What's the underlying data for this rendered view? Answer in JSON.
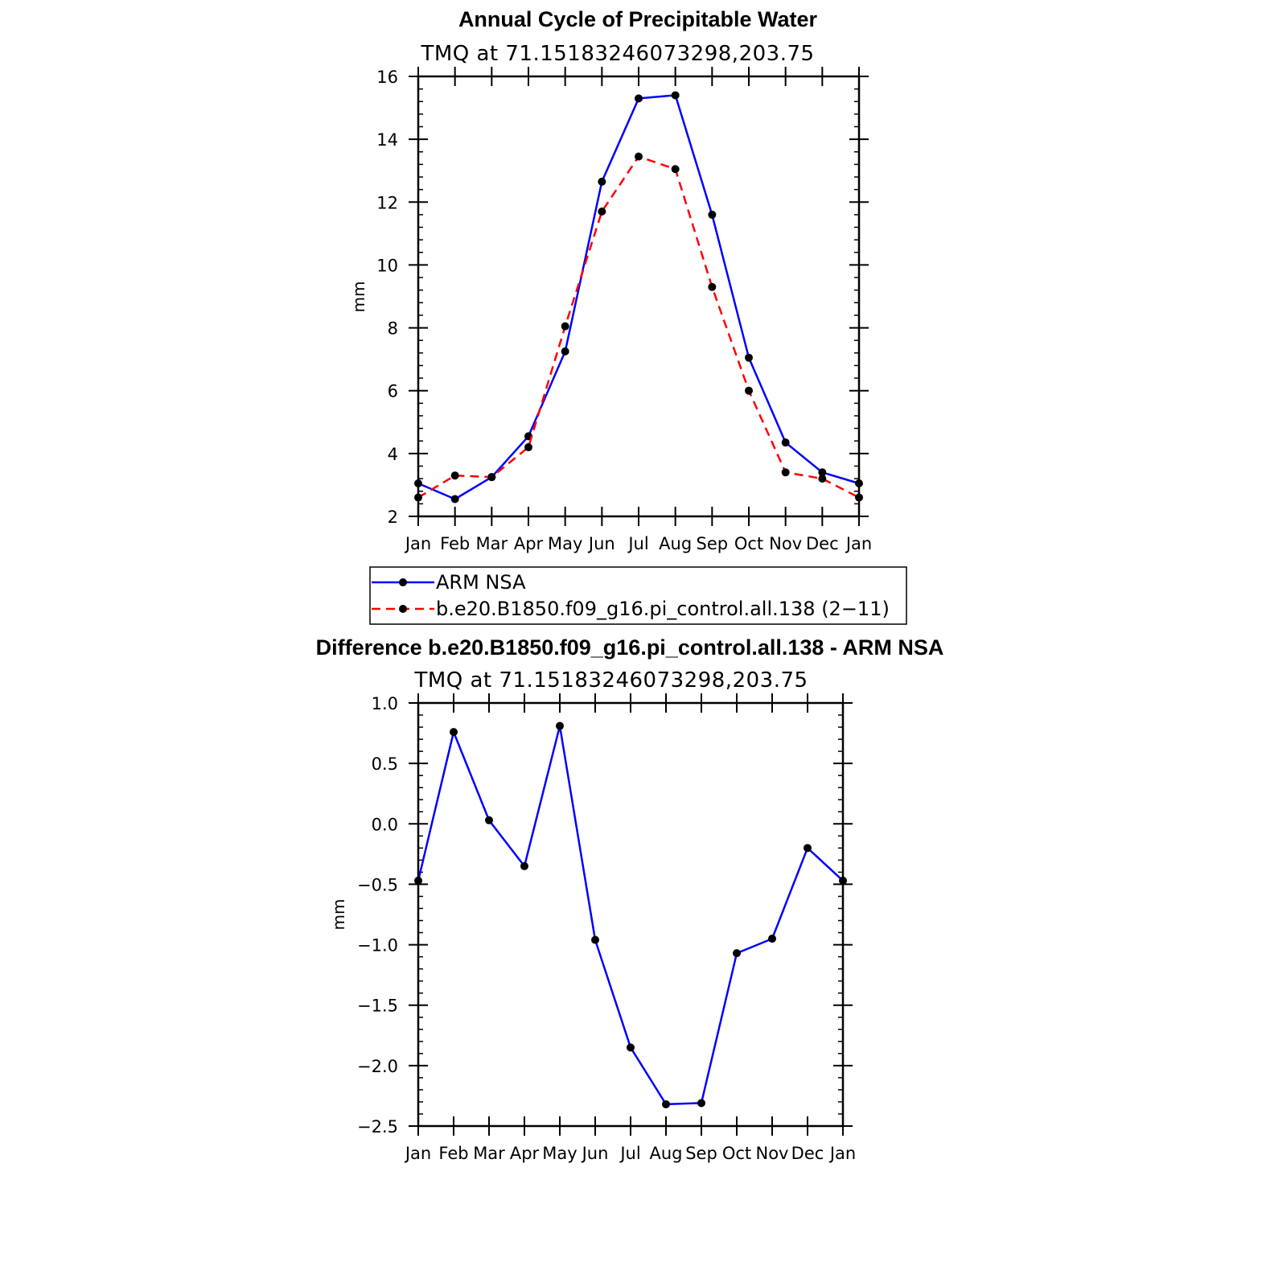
{
  "chart_data": [
    {
      "type": "line",
      "title": "Annual Cycle of Precipitable Water",
      "subtitle": "TMQ at 71.15183246073298,203.75",
      "xlabel": "",
      "ylabel": "mm",
      "categories": [
        "Jan",
        "Feb",
        "Mar",
        "Apr",
        "May",
        "Jun",
        "Jul",
        "Aug",
        "Sep",
        "Oct",
        "Nov",
        "Dec",
        "Jan"
      ],
      "ylim": [
        2,
        16
      ],
      "yticks": [
        2,
        4,
        6,
        8,
        10,
        12,
        14,
        16
      ],
      "ytick_labels": [
        "2",
        "4",
        "6",
        "8",
        "10",
        "12",
        "14",
        "16"
      ],
      "y_minor_step": 0.4,
      "series": [
        {
          "name": "ARM NSA",
          "color": "#0000ff",
          "dash": "solid",
          "values": [
            3.05,
            2.55,
            3.25,
            4.55,
            7.25,
            12.65,
            15.3,
            15.4,
            11.6,
            7.05,
            4.35,
            3.4,
            3.05
          ]
        },
        {
          "name": "b.e20.B1850.f09_g16.pi_control.all.138 (2−11)",
          "color": "#ff0000",
          "dash": "dashed",
          "values": [
            2.6,
            3.3,
            3.25,
            4.2,
            8.05,
            11.7,
            13.45,
            13.05,
            9.3,
            6.0,
            3.4,
            3.2,
            2.6
          ]
        }
      ],
      "legend": {
        "position": "below",
        "entries": [
          "ARM NSA",
          "b.e20.B1850.f09_g16.pi_control.all.138 (2−11)"
        ]
      }
    },
    {
      "type": "line",
      "title": "Difference b.e20.B1850.f09_g16.pi_control.all.138 - ARM NSA",
      "subtitle": "TMQ at 71.15183246073298,203.75",
      "xlabel": "",
      "ylabel": "mm",
      "categories": [
        "Jan",
        "Feb",
        "Mar",
        "Apr",
        "May",
        "Jun",
        "Jul",
        "Aug",
        "Sep",
        "Oct",
        "Nov",
        "Dec",
        "Jan"
      ],
      "ylim": [
        -2.5,
        1.0
      ],
      "yticks": [
        -2.5,
        -2.0,
        -1.5,
        -1.0,
        -0.5,
        0.0,
        0.5,
        1.0
      ],
      "ytick_labels": [
        "−2.5",
        "−2.0",
        "−1.5",
        "−1.0",
        "−0.5",
        "0.0",
        "0.5",
        "1.0"
      ],
      "y_minor_step": 0.1,
      "series": [
        {
          "name": "Difference",
          "color": "#0000ff",
          "dash": "solid",
          "values": [
            -0.47,
            0.76,
            0.03,
            -0.35,
            0.81,
            -0.96,
            -1.85,
            -2.32,
            -2.31,
            -1.07,
            -0.95,
            -0.2,
            -0.47
          ]
        }
      ]
    }
  ]
}
